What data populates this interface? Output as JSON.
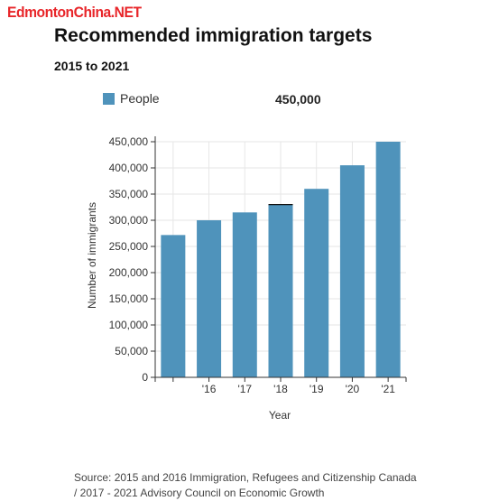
{
  "watermark": "EdmontonChina.NET",
  "title": "Recommended immigration targets",
  "subtitle": "2015 to 2021",
  "legend": {
    "label": "People",
    "value": "450,000"
  },
  "source": "Source: 2015 and 2016 Immigration, Refugees and Citizenship Canada / 2017 - 2021 Advisory Council on Economic Growth",
  "colors": {
    "bar": "#4f93bb",
    "watermark": "#e8262a"
  },
  "chart_data": {
    "type": "bar",
    "categories": [
      "",
      "'16",
      "'17",
      "'18",
      "'19",
      "'20",
      "'21"
    ],
    "values": [
      271800,
      300000,
      315000,
      330000,
      360000,
      405000,
      450000
    ],
    "xlabel": "Year",
    "ylabel": "Number of immigrants",
    "ylim": [
      0,
      450000
    ],
    "yticks": [
      0,
      50000,
      100000,
      150000,
      200000,
      250000,
      300000,
      350000,
      400000,
      450000
    ],
    "ytick_labels": [
      "0",
      "50,000",
      "100,000",
      "150,000",
      "200,000",
      "250,000",
      "300,000",
      "350,000",
      "400,000",
      "450,000"
    ],
    "grid": true,
    "legend_position": "top"
  }
}
